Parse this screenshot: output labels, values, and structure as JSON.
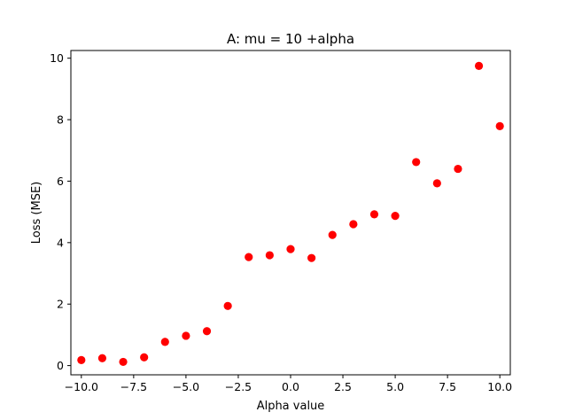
{
  "chart_data": {
    "type": "scatter",
    "title": "A: mu = 10 +alpha",
    "xlabel": "Alpha value",
    "ylabel": "Loss (MSE)",
    "xlim": [
      -10.5,
      10.5
    ],
    "ylim": [
      -0.3,
      10.25
    ],
    "xticks": [
      -10.0,
      -7.5,
      -5.0,
      -2.5,
      0.0,
      2.5,
      5.0,
      7.5,
      10.0
    ],
    "xtick_labels": [
      "−10.0",
      "−7.5",
      "−5.0",
      "−2.5",
      "0.0",
      "2.5",
      "5.0",
      "7.5",
      "10.0"
    ],
    "yticks": [
      0,
      2,
      4,
      6,
      8,
      10
    ],
    "ytick_labels": [
      "0",
      "2",
      "4",
      "6",
      "8",
      "10"
    ],
    "grid": false,
    "marker_color": "#ff0000",
    "series": [
      {
        "x": [
          -10,
          -9,
          -8,
          -7,
          -6,
          -5,
          -4,
          -3,
          -2,
          -1,
          0,
          1,
          2,
          3,
          4,
          5,
          6,
          7,
          8,
          9,
          10
        ],
        "y": [
          0.18,
          0.24,
          0.12,
          0.27,
          0.77,
          0.97,
          1.12,
          1.94,
          3.53,
          3.59,
          3.79,
          3.5,
          4.25,
          4.6,
          4.92,
          4.87,
          6.62,
          5.93,
          6.4,
          9.75,
          7.79
        ]
      }
    ]
  }
}
